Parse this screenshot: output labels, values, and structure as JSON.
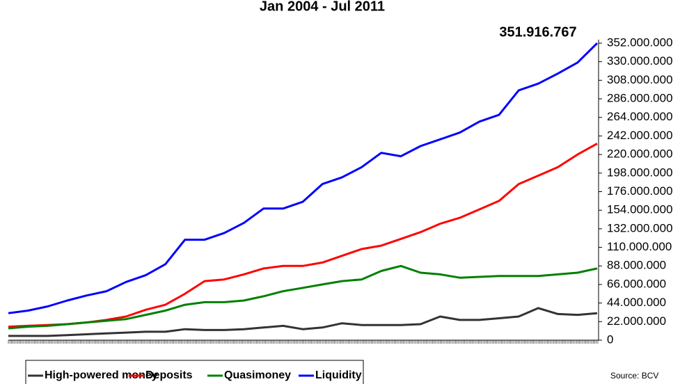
{
  "chart_data": {
    "type": "line",
    "title": "Jan 2004 - Jul 2011",
    "annotation": "351.916.767",
    "source": "Source: BCV",
    "ylim": [
      0,
      352000000
    ],
    "yticks": [
      0,
      {
        "value": 22000000,
        "label": "22.000.000"
      },
      {
        "value": 44000000,
        "label": "44.000.000"
      },
      {
        "value": 66000000,
        "label": "66.000.000"
      },
      {
        "value": 88000000,
        "label": "88.000.000"
      },
      {
        "value": 110000000,
        "label": "110.000.000"
      },
      {
        "value": 132000000,
        "label": "132.000.000"
      },
      {
        "value": 154000000,
        "label": "154.000.000"
      },
      {
        "value": 176000000,
        "label": "176.000.000"
      },
      {
        "value": 198000000,
        "label": "198.000.000"
      },
      {
        "value": 220000000,
        "label": "220.000.000"
      },
      {
        "value": 242000000,
        "label": "242.000.000"
      },
      {
        "value": 264000000,
        "label": "264.000.000"
      },
      {
        "value": 286000000,
        "label": "286.000.000"
      },
      {
        "value": 308000000,
        "label": "308.000.000"
      },
      {
        "value": 330000000,
        "label": "330.000.000"
      },
      {
        "value": 352000000,
        "label": "352.000.000"
      }
    ],
    "series": [
      {
        "name": "High-powered money",
        "color": "#333333",
        "values": [
          5000000,
          5000000,
          5000000,
          6000000,
          7000000,
          8000000,
          9000000,
          10000000,
          10000000,
          13000000,
          12000000,
          12000000,
          13000000,
          15000000,
          17000000,
          13000000,
          15000000,
          20000000,
          18000000,
          18000000,
          18000000,
          19000000,
          28000000,
          24000000,
          24000000,
          26000000,
          28000000,
          38000000,
          31000000,
          30000000,
          32000000
        ]
      },
      {
        "name": "Deposits",
        "color": "#ff0000",
        "values": [
          16000000,
          17000000,
          18000000,
          19000000,
          21000000,
          24000000,
          28000000,
          36000000,
          42000000,
          55000000,
          70000000,
          72000000,
          78000000,
          85000000,
          88000000,
          88000000,
          92000000,
          100000000,
          108000000,
          112000000,
          120000000,
          128000000,
          138000000,
          145000000,
          155000000,
          165000000,
          185000000,
          195000000,
          205000000,
          220000000,
          233000000
        ]
      },
      {
        "name": "Quasimoney",
        "color": "#008000",
        "values": [
          14000000,
          16000000,
          17000000,
          19000000,
          21000000,
          23000000,
          25000000,
          30000000,
          35000000,
          42000000,
          45000000,
          45000000,
          47000000,
          52000000,
          58000000,
          62000000,
          66000000,
          70000000,
          72000000,
          82000000,
          88000000,
          80000000,
          78000000,
          74000000,
          75000000,
          76000000,
          76000000,
          76000000,
          78000000,
          80000000,
          85000000
        ]
      },
      {
        "name": "Liquidity",
        "color": "#0000ff",
        "values": [
          32000000,
          35000000,
          40000000,
          47000000,
          53000000,
          58000000,
          69000000,
          77000000,
          90000000,
          119000000,
          119000000,
          127000000,
          139000000,
          156000000,
          156000000,
          164000000,
          185000000,
          193000000,
          205000000,
          222000000,
          218000000,
          230000000,
          238000000,
          246000000,
          259000000,
          267000000,
          296000000,
          304000000,
          316000000,
          329000000,
          351916767
        ]
      }
    ]
  }
}
